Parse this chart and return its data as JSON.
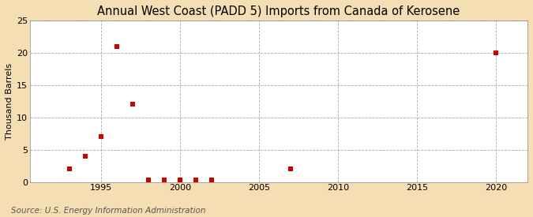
{
  "title": "Annual West Coast (PADD 5) Imports from Canada of Kerosene",
  "ylabel": "Thousand Barrels",
  "source": "Source: U.S. Energy Information Administration",
  "fig_background_color": "#f5deb3",
  "plot_background_color": "#ffffff",
  "marker_color": "#cc0000",
  "marker": "s",
  "marker_size": 4,
  "xlim": [
    1990.5,
    2022
  ],
  "ylim": [
    0,
    25
  ],
  "yticks": [
    0,
    5,
    10,
    15,
    20,
    25
  ],
  "xticks": [
    1995,
    2000,
    2005,
    2010,
    2015,
    2020
  ],
  "data_x": [
    1993,
    1994,
    1995,
    1996,
    1997,
    1998,
    1999,
    2000,
    2001,
    2002,
    2007,
    2020
  ],
  "data_y": [
    2,
    4,
    7,
    21,
    12,
    0.3,
    0.3,
    0.3,
    0.3,
    0.3,
    2,
    20
  ],
  "title_fontsize": 10.5,
  "ylabel_fontsize": 8,
  "tick_fontsize": 8,
  "source_fontsize": 7.5
}
